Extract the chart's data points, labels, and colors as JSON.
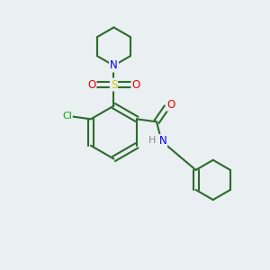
{
  "background_color": "#eaeff2",
  "bond_color": "#2d6b2d",
  "atom_colors": {
    "N": "#0000ee",
    "O": "#ee0000",
    "S": "#cccc00",
    "Cl": "#00aa00",
    "H": "#888888",
    "C": "#2d6b2d"
  },
  "figsize": [
    3.0,
    3.0
  ],
  "dpi": 100,
  "xlim": [
    0,
    10
  ],
  "ylim": [
    0,
    10
  ]
}
